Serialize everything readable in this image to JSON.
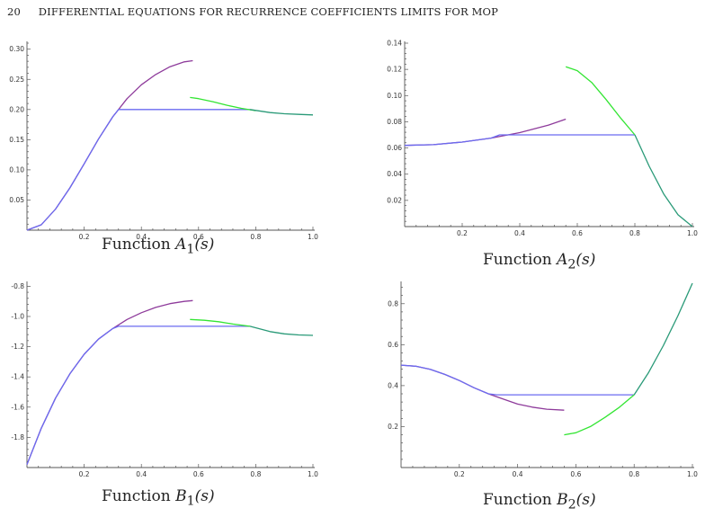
{
  "header": {
    "page_number": "20",
    "title": "DIFFERENTIAL EQUATIONS FOR RECURRENCE COEFFICIENTS LIMITS FOR MOP"
  },
  "colors": {
    "purple": "#8e3b9b",
    "blue": "#6b6bf0",
    "green": "#33e533",
    "teal": "#2a9a78"
  },
  "chart_data": [
    {
      "type": "line",
      "caption": {
        "prefix": "Function ",
        "name": "A",
        "sub": "1",
        "arg": "(s)"
      },
      "xlim": [
        0,
        1.0
      ],
      "ylim": [
        0,
        0.31
      ],
      "xticks": [
        0.2,
        0.4,
        0.6,
        0.8,
        1.0
      ],
      "xtick_labels": [
        "0.2",
        "0.4",
        "0.6",
        "0.8",
        "1.0"
      ],
      "yticks": [
        0.05,
        0.1,
        0.15,
        0.2,
        0.25,
        0.3
      ],
      "ytick_labels": [
        "0.05",
        "0.10",
        "0.15",
        "0.20",
        "0.25",
        "0.30"
      ],
      "series": [
        {
          "color": "purple",
          "x": [
            0,
            0.05,
            0.1,
            0.15,
            0.2,
            0.25,
            0.3,
            0.35,
            0.4,
            0.45,
            0.5,
            0.55,
            0.58
          ],
          "y": [
            0,
            0.009,
            0.035,
            0.07,
            0.11,
            0.151,
            0.188,
            0.218,
            0.241,
            0.258,
            0.271,
            0.279,
            0.281
          ]
        },
        {
          "color": "blue",
          "x": [
            0,
            0.05,
            0.1,
            0.15,
            0.2,
            0.25,
            0.3,
            0.32,
            0.4,
            0.5,
            0.6,
            0.7,
            0.78
          ],
          "y": [
            0,
            0.009,
            0.035,
            0.07,
            0.11,
            0.151,
            0.188,
            0.2,
            0.2,
            0.2,
            0.2,
            0.2,
            0.2
          ]
        },
        {
          "color": "green",
          "x": [
            0.57,
            0.6,
            0.65,
            0.7,
            0.75,
            0.8
          ],
          "y": [
            0.22,
            0.218,
            0.213,
            0.207,
            0.202,
            0.198
          ]
        },
        {
          "color": "teal",
          "x": [
            0.78,
            0.85,
            0.9,
            0.95,
            1.0
          ],
          "y": [
            0.2,
            0.195,
            0.193,
            0.192,
            0.191
          ]
        }
      ]
    },
    {
      "type": "line",
      "caption": {
        "prefix": "Function ",
        "name": "A",
        "sub": "2",
        "arg": "(s)"
      },
      "xlim": [
        0,
        1.0
      ],
      "ylim": [
        0,
        0.14
      ],
      "xticks": [
        0.2,
        0.4,
        0.6,
        0.8,
        1.0
      ],
      "xtick_labels": [
        "0.2",
        "0.4",
        "0.6",
        "0.8",
        "1.0"
      ],
      "yticks": [
        0.02,
        0.04,
        0.06,
        0.08,
        0.1,
        0.12,
        0.14
      ],
      "ytick_labels": [
        "0.02",
        "0.04",
        "0.06",
        "0.08",
        "0.10",
        "0.12",
        "0.14"
      ],
      "series": [
        {
          "color": "purple",
          "x": [
            0,
            0.1,
            0.2,
            0.3,
            0.4,
            0.5,
            0.56
          ],
          "y": [
            0.062,
            0.0625,
            0.0645,
            0.0675,
            0.0717,
            0.0775,
            0.082
          ]
        },
        {
          "color": "blue",
          "x": [
            0,
            0.1,
            0.2,
            0.3,
            0.33,
            0.4,
            0.5,
            0.6,
            0.7,
            0.8
          ],
          "y": [
            0.062,
            0.0625,
            0.0645,
            0.0675,
            0.07,
            0.07,
            0.07,
            0.07,
            0.07,
            0.07
          ]
        },
        {
          "color": "green",
          "x": [
            0.56,
            0.6,
            0.65,
            0.7,
            0.75,
            0.8
          ],
          "y": [
            0.122,
            0.119,
            0.11,
            0.097,
            0.083,
            0.07
          ]
        },
        {
          "color": "teal",
          "x": [
            0.8,
            0.85,
            0.9,
            0.95,
            1.0
          ],
          "y": [
            0.07,
            0.046,
            0.025,
            0.009,
            0
          ]
        }
      ]
    },
    {
      "type": "line",
      "caption": {
        "prefix": "Function ",
        "name": "B",
        "sub": "1",
        "arg": "(s)"
      },
      "xlim": [
        0,
        1.0
      ],
      "ylim": [
        -2.0,
        -0.78
      ],
      "xticks": [
        0.2,
        0.4,
        0.6,
        0.8,
        1.0
      ],
      "xtick_labels": [
        "0.2",
        "0.4",
        "0.6",
        "0.8",
        "1.0"
      ],
      "yticks": [
        -1.8,
        -1.6,
        -1.4,
        -1.2,
        -1.0,
        -0.8
      ],
      "ytick_labels": [
        "-1.8",
        "-1.6",
        "-1.4",
        "-1.2",
        "-1.0",
        "-0.8"
      ],
      "series": [
        {
          "color": "purple",
          "x": [
            0,
            0.05,
            0.1,
            0.15,
            0.2,
            0.25,
            0.3,
            0.35,
            0.4,
            0.45,
            0.5,
            0.55,
            0.58
          ],
          "y": [
            -1.98,
            -1.74,
            -1.54,
            -1.38,
            -1.25,
            -1.15,
            -1.08,
            -1.02,
            -0.975,
            -0.94,
            -0.915,
            -0.9,
            -0.895
          ]
        },
        {
          "color": "blue",
          "x": [
            0,
            0.05,
            0.1,
            0.15,
            0.2,
            0.25,
            0.3,
            0.32,
            0.4,
            0.5,
            0.6,
            0.7,
            0.78
          ],
          "y": [
            -1.98,
            -1.74,
            -1.54,
            -1.38,
            -1.25,
            -1.15,
            -1.08,
            -1.065,
            -1.065,
            -1.065,
            -1.065,
            -1.065,
            -1.065
          ]
        },
        {
          "color": "green",
          "x": [
            0.57,
            0.62,
            0.67,
            0.72,
            0.78
          ],
          "y": [
            -1.02,
            -1.025,
            -1.035,
            -1.05,
            -1.065
          ]
        },
        {
          "color": "teal",
          "x": [
            0.78,
            0.85,
            0.9,
            0.95,
            1.0
          ],
          "y": [
            -1.065,
            -1.1,
            -1.115,
            -1.122,
            -1.125
          ]
        }
      ]
    },
    {
      "type": "line",
      "caption": {
        "prefix": "Function ",
        "name": "B",
        "sub": "2",
        "arg": "(s)"
      },
      "xlim": [
        0,
        1.0
      ],
      "ylim": [
        0,
        0.9
      ],
      "xticks": [
        0.2,
        0.4,
        0.6,
        0.8,
        1.0
      ],
      "xtick_labels": [
        "0.2",
        "0.4",
        "0.6",
        "0.8",
        "1.0"
      ],
      "yticks": [
        0.2,
        0.4,
        0.6,
        0.8
      ],
      "ytick_labels": [
        "0.2",
        "0.4",
        "0.6",
        "0.8"
      ],
      "series": [
        {
          "color": "purple",
          "x": [
            0,
            0.05,
            0.1,
            0.15,
            0.2,
            0.25,
            0.3,
            0.35,
            0.4,
            0.45,
            0.5,
            0.56
          ],
          "y": [
            0.5,
            0.495,
            0.48,
            0.455,
            0.425,
            0.39,
            0.36,
            0.335,
            0.31,
            0.295,
            0.285,
            0.28
          ]
        },
        {
          "color": "blue",
          "x": [
            0,
            0.05,
            0.1,
            0.15,
            0.2,
            0.25,
            0.3,
            0.33,
            0.4,
            0.5,
            0.6,
            0.7,
            0.8
          ],
          "y": [
            0.5,
            0.495,
            0.48,
            0.455,
            0.425,
            0.39,
            0.36,
            0.355,
            0.355,
            0.355,
            0.355,
            0.355,
            0.355
          ]
        },
        {
          "color": "green",
          "x": [
            0.56,
            0.6,
            0.65,
            0.7,
            0.75,
            0.8
          ],
          "y": [
            0.16,
            0.17,
            0.2,
            0.245,
            0.295,
            0.355
          ]
        },
        {
          "color": "teal",
          "x": [
            0.8,
            0.85,
            0.9,
            0.95,
            1.0
          ],
          "y": [
            0.355,
            0.465,
            0.595,
            0.74,
            0.9
          ]
        }
      ]
    }
  ]
}
